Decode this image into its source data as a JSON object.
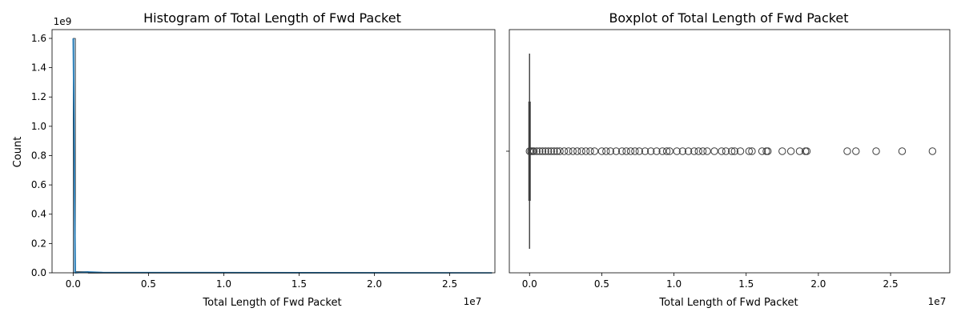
{
  "chart_data": [
    {
      "type": "histogram",
      "title": "Histogram of Total Length of Fwd Packet",
      "xlabel": "Total Length of Fwd Packet",
      "ylabel": "Count",
      "x_offset_label": "1e7",
      "y_offset_label": "1e9",
      "xlim": [
        -0.14,
        2.8
      ],
      "ylim": [
        0,
        1.66
      ],
      "x_ticks": [
        0.0,
        0.5,
        1.0,
        1.5,
        2.0,
        2.5
      ],
      "x_tick_labels": [
        "0.0",
        "0.5",
        "1.0",
        "1.5",
        "2.0",
        "2.5"
      ],
      "y_ticks": [
        0.0,
        0.2,
        0.4,
        0.6,
        0.8,
        1.0,
        1.2,
        1.4,
        1.6
      ],
      "y_tick_labels": [
        "0.0",
        "0.2",
        "0.4",
        "0.6",
        "0.8",
        "1.0",
        "1.2",
        "1.4",
        "1.6"
      ],
      "bins": [
        {
          "x0": 0.0,
          "x1": 0.015,
          "count": 1.6
        },
        {
          "x0": 0.015,
          "x1": 0.1,
          "count": 0.008
        },
        {
          "x0": 0.1,
          "x1": 2.78,
          "count": 0.001
        }
      ],
      "kde": [
        [
          0.0,
          1.6
        ],
        [
          0.015,
          0.0
        ],
        [
          0.1,
          0.006
        ],
        [
          0.2,
          0.002
        ],
        [
          2.78,
          0.0
        ]
      ],
      "color": "#1f77b4"
    },
    {
      "type": "boxplot",
      "title": "Boxplot of Total Length of Fwd Packet",
      "xlabel": "Total Length of Fwd Packet",
      "x_offset_label": "1e7",
      "xlim": [
        -0.14,
        2.91
      ],
      "x_ticks": [
        0.0,
        0.5,
        1.0,
        1.5,
        2.0,
        2.5
      ],
      "x_tick_labels": [
        "0.0",
        "0.5",
        "1.0",
        "1.5",
        "2.0",
        "2.5"
      ],
      "box": {
        "q1": 0.0,
        "median": 0.0,
        "q3": 0.0,
        "whisker_low": 0.0,
        "whisker_high": 0.0
      },
      "outliers": [
        0.0,
        0.01,
        0.02,
        0.03,
        0.05,
        0.07,
        0.09,
        0.11,
        0.13,
        0.15,
        0.17,
        0.19,
        0.21,
        0.24,
        0.27,
        0.3,
        0.33,
        0.36,
        0.39,
        0.42,
        0.45,
        0.5,
        0.53,
        0.56,
        0.6,
        0.64,
        0.67,
        0.7,
        0.73,
        0.76,
        0.8,
        0.84,
        0.88,
        0.92,
        0.95,
        0.97,
        1.02,
        1.06,
        1.1,
        1.14,
        1.17,
        1.2,
        1.23,
        1.28,
        1.33,
        1.36,
        1.4,
        1.42,
        1.46,
        1.52,
        1.54,
        1.61,
        1.64,
        1.65,
        1.75,
        1.81,
        1.87,
        1.91,
        1.92,
        2.2,
        2.26,
        2.4,
        2.58,
        2.79
      ],
      "color": "#3d3d3d"
    }
  ]
}
